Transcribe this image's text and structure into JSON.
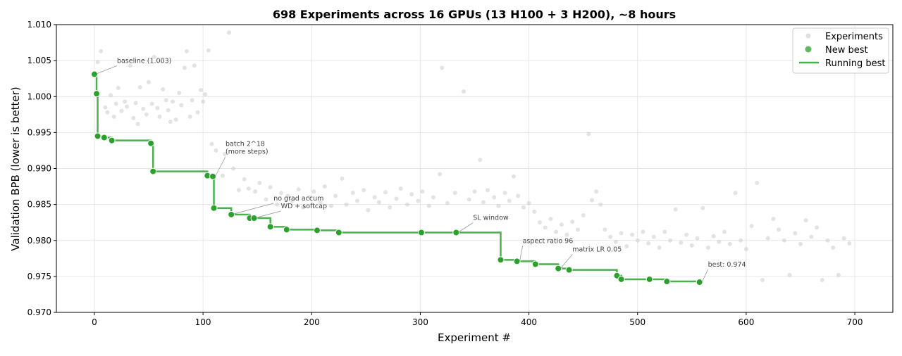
{
  "chart_data": {
    "type": "scatter",
    "title": "698 Experiments across 16 GPUs (13 H100 + 3 H200), ~8 hours",
    "xlabel": "Experiment #",
    "ylabel": "Validation BPB (lower is better)",
    "xlim": [
      -35,
      735
    ],
    "ylim": [
      0.97,
      1.01
    ],
    "xticks": [
      0,
      100,
      200,
      300,
      400,
      500,
      600,
      700
    ],
    "yticks": [
      "0.970",
      "0.975",
      "0.980",
      "0.985",
      "0.990",
      "0.995",
      "1.000",
      "1.005",
      "1.010"
    ],
    "grid": true,
    "legend_position": "top-right",
    "colors": {
      "experiments": "#cccccc",
      "new_best": "#2ca02c",
      "running_best": "#4caf50"
    },
    "series": [
      {
        "name": "Experiments",
        "kind": "scatter",
        "points": [
          [
            3,
            1.0048
          ],
          [
            6,
            1.0063
          ],
          [
            10,
            0.9985
          ],
          [
            12,
            0.9978
          ],
          [
            15,
            1.0002
          ],
          [
            18,
            0.9972
          ],
          [
            20,
            0.999
          ],
          [
            22,
            1.0012
          ],
          [
            25,
            0.998
          ],
          [
            28,
            0.9993
          ],
          [
            30,
            0.9986
          ],
          [
            33,
            1.0043
          ],
          [
            36,
            0.997
          ],
          [
            38,
            0.9991
          ],
          [
            40,
            0.9962
          ],
          [
            42,
            1.0013
          ],
          [
            45,
            0.9983
          ],
          [
            48,
            0.9975
          ],
          [
            50,
            1.002
          ],
          [
            53,
            0.999
          ],
          [
            55,
            1.0055
          ],
          [
            58,
            0.9984
          ],
          [
            60,
            0.9972
          ],
          [
            63,
            1.001
          ],
          [
            66,
            0.9995
          ],
          [
            68,
            0.9981
          ],
          [
            70,
            0.9965
          ],
          [
            72,
            0.9993
          ],
          [
            75,
            0.9968
          ],
          [
            78,
            1.0005
          ],
          [
            80,
            0.9988
          ],
          [
            83,
            1.004
          ],
          [
            85,
            1.0063
          ],
          [
            88,
            0.9972
          ],
          [
            90,
            0.9995
          ],
          [
            92,
            1.0043
          ],
          [
            95,
            0.9978
          ],
          [
            98,
            1.0009
          ],
          [
            100,
            0.9993
          ],
          [
            102,
            1.0003
          ],
          [
            105,
            1.0064
          ],
          [
            108,
            0.9934
          ],
          [
            112,
            0.9925
          ],
          [
            118,
            0.989
          ],
          [
            120,
            0.992
          ],
          [
            124,
            1.0089
          ],
          [
            128,
            0.99
          ],
          [
            133,
            0.987
          ],
          [
            138,
            0.9885
          ],
          [
            142,
            0.9872
          ],
          [
            148,
            0.9868
          ],
          [
            152,
            0.988
          ],
          [
            158,
            0.9857
          ],
          [
            162,
            0.9874
          ],
          [
            168,
            0.985
          ],
          [
            172,
            0.9866
          ],
          [
            178,
            0.9862
          ],
          [
            182,
            0.9855
          ],
          [
            188,
            0.9871
          ],
          [
            192,
            0.9846
          ],
          [
            198,
            0.986
          ],
          [
            202,
            0.9868
          ],
          [
            208,
            0.9853
          ],
          [
            212,
            0.9875
          ],
          [
            218,
            0.9848
          ],
          [
            222,
            0.9862
          ],
          [
            228,
            0.9886
          ],
          [
            232,
            0.985
          ],
          [
            238,
            0.9866
          ],
          [
            242,
            0.9855
          ],
          [
            248,
            0.987
          ],
          [
            252,
            0.9842
          ],
          [
            258,
            0.986
          ],
          [
            262,
            0.9853
          ],
          [
            268,
            0.9867
          ],
          [
            272,
            0.9846
          ],
          [
            278,
            0.9858
          ],
          [
            282,
            0.9872
          ],
          [
            288,
            0.985
          ],
          [
            292,
            0.9864
          ],
          [
            298,
            0.9855
          ],
          [
            302,
            0.9868
          ],
          [
            308,
            0.9848
          ],
          [
            312,
            0.986
          ],
          [
            318,
            0.9892
          ],
          [
            320,
            1.004
          ],
          [
            325,
            0.9852
          ],
          [
            332,
            0.9866
          ],
          [
            340,
            1.0007
          ],
          [
            345,
            0.9857
          ],
          [
            350,
            0.9868
          ],
          [
            355,
            0.9912
          ],
          [
            358,
            0.9853
          ],
          [
            362,
            0.987
          ],
          [
            368,
            0.986
          ],
          [
            372,
            0.9848
          ],
          [
            378,
            0.9866
          ],
          [
            382,
            0.9855
          ],
          [
            386,
            0.9889
          ],
          [
            390,
            0.9862
          ],
          [
            395,
            0.9846
          ],
          [
            400,
            0.9852
          ],
          [
            405,
            0.984
          ],
          [
            410,
            0.9825
          ],
          [
            415,
            0.9818
          ],
          [
            420,
            0.983
          ],
          [
            425,
            0.9812
          ],
          [
            430,
            0.9822
          ],
          [
            435,
            0.9808
          ],
          [
            440,
            0.9826
          ],
          [
            445,
            0.9815
          ],
          [
            450,
            0.9835
          ],
          [
            455,
            0.9948
          ],
          [
            458,
            0.9856
          ],
          [
            462,
            0.9868
          ],
          [
            466,
            0.985
          ],
          [
            470,
            0.9815
          ],
          [
            475,
            0.9805
          ],
          [
            480,
            0.9798
          ],
          [
            485,
            0.981
          ],
          [
            490,
            0.9792
          ],
          [
            495,
            0.9808
          ],
          [
            500,
            0.98
          ],
          [
            505,
            0.9812
          ],
          [
            510,
            0.9796
          ],
          [
            515,
            0.9805
          ],
          [
            520,
            0.979
          ],
          [
            525,
            0.9812
          ],
          [
            530,
            0.98
          ],
          [
            535,
            0.9843
          ],
          [
            540,
            0.9797
          ],
          [
            545,
            0.9808
          ],
          [
            550,
            0.9793
          ],
          [
            555,
            0.9803
          ],
          [
            560,
            0.9845
          ],
          [
            565,
            0.979
          ],
          [
            570,
            0.9806
          ],
          [
            575,
            0.9798
          ],
          [
            580,
            0.9812
          ],
          [
            585,
            0.9795
          ],
          [
            590,
            0.9866
          ],
          [
            595,
            0.98
          ],
          [
            600,
            0.9788
          ],
          [
            605,
            0.982
          ],
          [
            610,
            0.988
          ],
          [
            615,
            0.9745
          ],
          [
            620,
            0.9803
          ],
          [
            625,
            0.983
          ],
          [
            630,
            0.9815
          ],
          [
            635,
            0.98
          ],
          [
            640,
            0.9752
          ],
          [
            645,
            0.981
          ],
          [
            650,
            0.9795
          ],
          [
            655,
            0.9828
          ],
          [
            660,
            0.9805
          ],
          [
            665,
            0.9818
          ],
          [
            670,
            0.9745
          ],
          [
            675,
            0.98
          ],
          [
            680,
            0.979
          ],
          [
            685,
            0.9752
          ],
          [
            690,
            0.9803
          ],
          [
            695,
            0.9796
          ]
        ]
      },
      {
        "name": "New best",
        "kind": "scatter",
        "points": [
          [
            0,
            1.0031
          ],
          [
            2,
            1.0004
          ],
          [
            3,
            0.9945
          ],
          [
            9,
            0.9943
          ],
          [
            16,
            0.9939
          ],
          [
            52,
            0.9935
          ],
          [
            54,
            0.9896
          ],
          [
            104,
            0.989
          ],
          [
            109,
            0.9889
          ],
          [
            110,
            0.9845
          ],
          [
            126,
            0.9836
          ],
          [
            143,
            0.9831
          ],
          [
            147,
            0.9831
          ],
          [
            162,
            0.9819
          ],
          [
            177,
            0.9815
          ],
          [
            205,
            0.9814
          ],
          [
            225,
            0.9811
          ],
          [
            301,
            0.9811
          ],
          [
            333,
            0.9811
          ],
          [
            374,
            0.9773
          ],
          [
            389,
            0.9771
          ],
          [
            406,
            0.9767
          ],
          [
            427,
            0.9761
          ],
          [
            437,
            0.9759
          ],
          [
            481,
            0.9751
          ],
          [
            485,
            0.9746
          ],
          [
            511,
            0.9746
          ],
          [
            527,
            0.9743
          ],
          [
            557,
            0.9742
          ]
        ]
      },
      {
        "name": "Running best",
        "kind": "step-line"
      }
    ],
    "annotations": [
      {
        "text": "baseline (1.003)",
        "x": 0,
        "y": 1.0031
      },
      {
        "text": "batch 2^18\n(more steps)",
        "x": 109,
        "y": 0.9889
      },
      {
        "text": "no grad accum",
        "x": 126,
        "y": 0.9836
      },
      {
        "text": "WD + softcap",
        "x": 147,
        "y": 0.9831
      },
      {
        "text": "SL window",
        "x": 333,
        "y": 0.9811
      },
      {
        "text": "aspect ratio 96",
        "x": 389,
        "y": 0.9771
      },
      {
        "text": "matrix LR 0.05",
        "x": 427,
        "y": 0.9761
      },
      {
        "text": "best: 0.974",
        "x": 557,
        "y": 0.9742
      }
    ]
  }
}
